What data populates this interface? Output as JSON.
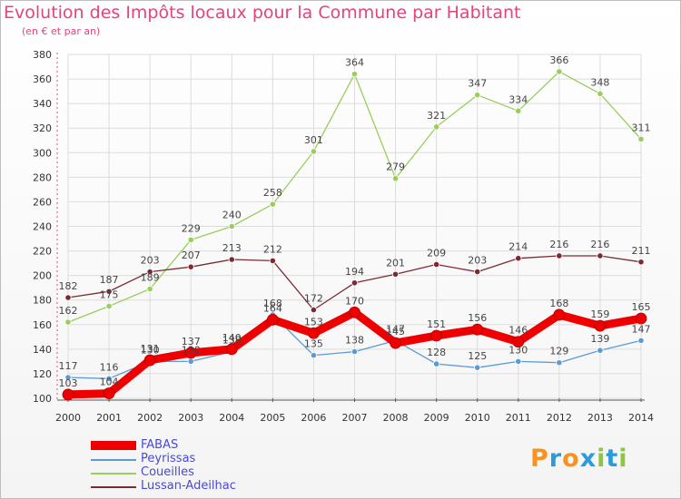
{
  "header": {
    "title": "Evolution des Impôts locaux pour la Commune par Habitant",
    "subtitle": "(en € et par an)"
  },
  "brand": {
    "text": "Proxiti"
  },
  "chart_data": {
    "type": "line",
    "title": "Evolution des Impôts locaux pour la Commune par Habitant",
    "subtitle": "(en € et par an)",
    "xlabel": "",
    "ylabel": "",
    "ylim": [
      100,
      380
    ],
    "yticks": [
      100,
      120,
      140,
      160,
      180,
      200,
      220,
      240,
      260,
      280,
      300,
      320,
      340,
      360,
      380
    ],
    "grid": true,
    "legend_position": "bottom-left",
    "categories": [
      "2000",
      "2001",
      "2002",
      "2003",
      "2004",
      "2005",
      "2006",
      "2007",
      "2008",
      "2009",
      "2010",
      "2011",
      "2012",
      "2013",
      "2014"
    ],
    "series": [
      {
        "name": "FABAS",
        "color": "#ee0000",
        "values": [
          103,
          104,
          131,
          137,
          140,
          164,
          153,
          170,
          145,
          151,
          156,
          146,
          168,
          159,
          165
        ]
      },
      {
        "name": "Peyrissas",
        "color": "#5b9bd5",
        "values": [
          117,
          116,
          130,
          130,
          138,
          168,
          135,
          138,
          147,
          128,
          125,
          130,
          129,
          139,
          147
        ]
      },
      {
        "name": "Coueilles",
        "color": "#9acd5a",
        "values": [
          162,
          175,
          189,
          229,
          240,
          258,
          301,
          364,
          279,
          321,
          347,
          334,
          366,
          348,
          311
        ]
      },
      {
        "name": "Lussan-Adeilhac",
        "color": "#7b2a33",
        "values": [
          182,
          187,
          203,
          207,
          213,
          212,
          172,
          194,
          201,
          209,
          203,
          214,
          216,
          216,
          211
        ]
      }
    ]
  }
}
